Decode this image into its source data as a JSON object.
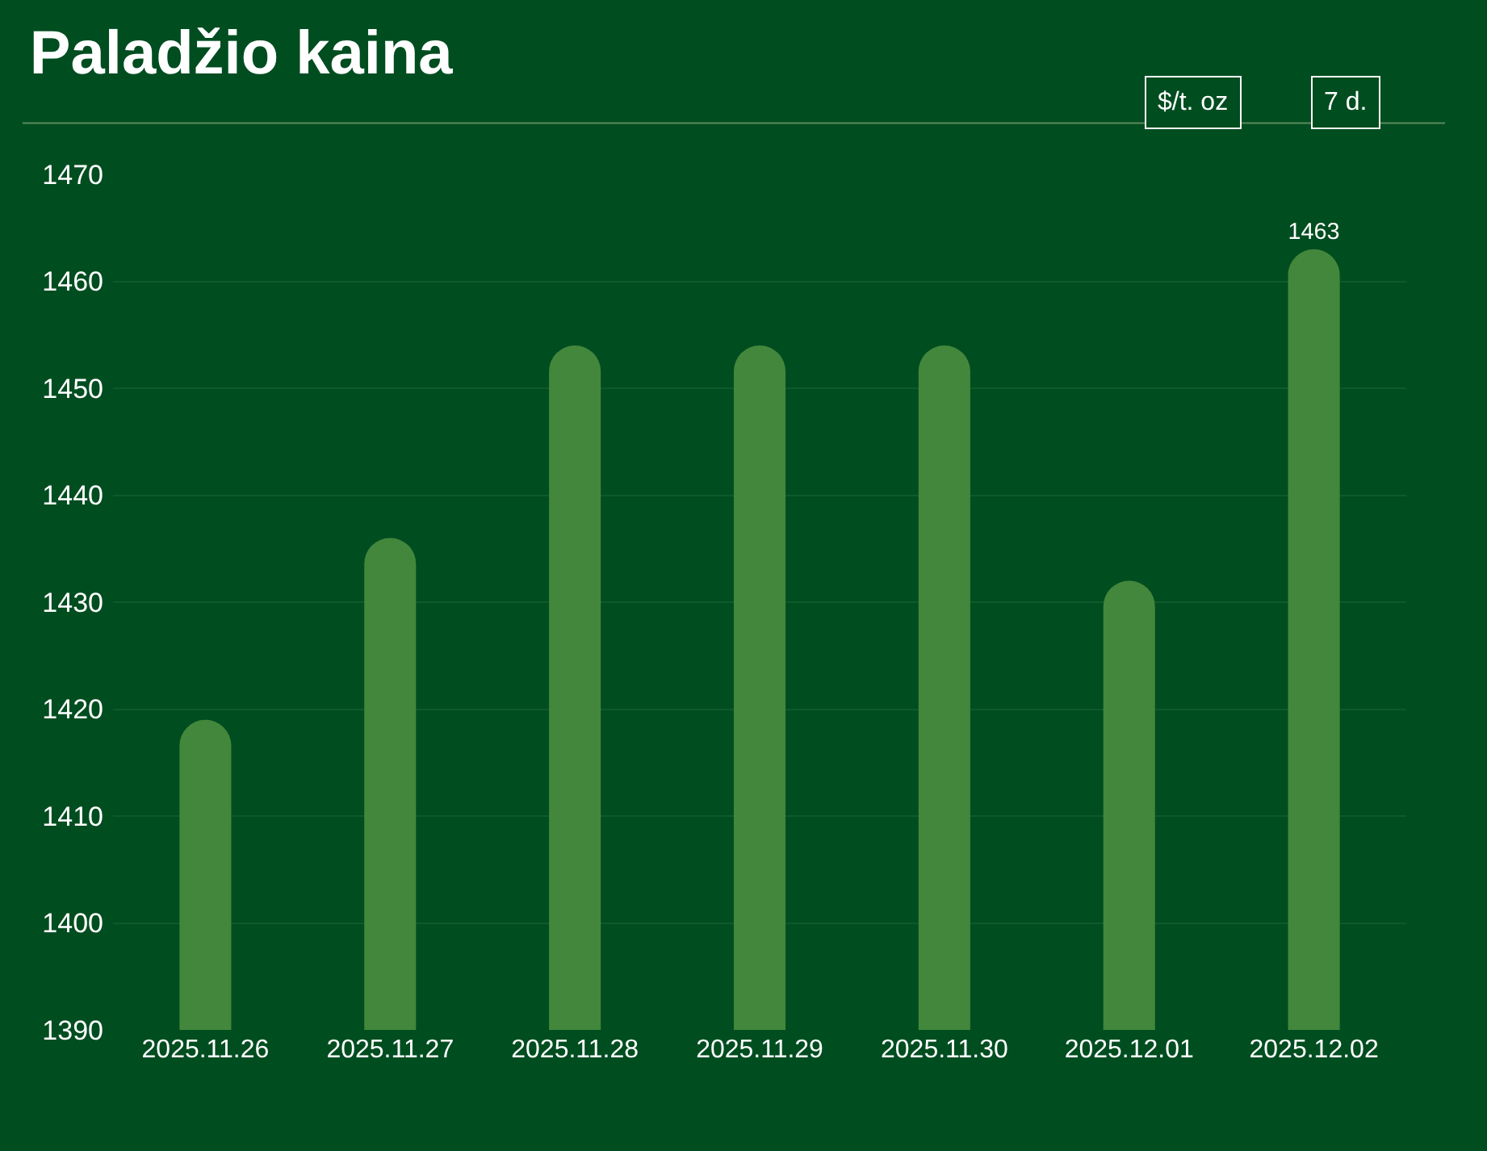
{
  "chart_data": {
    "type": "bar",
    "title": "Paladžio kaina",
    "annotations": [
      "$/t. oz",
      "7 d."
    ],
    "categories": [
      "2025.11.26",
      "2025.11.27",
      "2025.11.28",
      "2025.11.29",
      "2025.11.30",
      "2025.12.01",
      "2025.12.02"
    ],
    "values": [
      1419,
      1436,
      1454,
      1454,
      1454,
      1432,
      1463
    ],
    "value_labels": [
      null,
      null,
      null,
      null,
      null,
      null,
      "1463"
    ],
    "color": "#43873c",
    "ylim": [
      1390,
      1470
    ],
    "yticks": [
      1390,
      1400,
      1410,
      1420,
      1430,
      1440,
      1450,
      1460,
      1470
    ],
    "grid": "y",
    "legend": false
  }
}
